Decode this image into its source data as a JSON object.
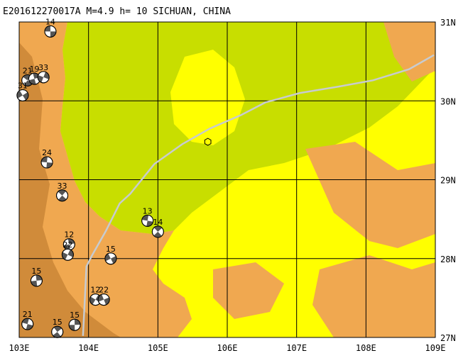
{
  "title": "E201612270017A  M=4.9  h= 10  SICHUAN, CHINA",
  "map": {
    "lon_range": [
      103,
      109
    ],
    "lat_range": [
      27,
      31
    ],
    "lon_ticks": [
      "103E",
      "104E",
      "105E",
      "106E",
      "107E",
      "108E",
      "109E"
    ],
    "lat_ticks": [
      "31N",
      "30N",
      "29N",
      "28N",
      "27N"
    ],
    "colors": {
      "lowland": "#c8de00",
      "plain": "#ffff00",
      "hill": "#f0a850",
      "mountain": "#d08b3a",
      "boundary": "#c7cbd0",
      "grid": "#000000"
    },
    "epicenter": {
      "lon": 105.72,
      "lat": 29.48,
      "marker": "hexagon-icon"
    },
    "events": [
      {
        "label": "14",
        "lon": 103.45,
        "lat": 30.88
      },
      {
        "label": "21",
        "lon": 103.12,
        "lat": 30.26
      },
      {
        "label": "19",
        "lon": 103.22,
        "lat": 30.28
      },
      {
        "label": "33",
        "lon": 103.35,
        "lat": 30.3
      },
      {
        "label": "31",
        "lon": 103.05,
        "lat": 30.07
      },
      {
        "label": "24",
        "lon": 103.4,
        "lat": 29.22
      },
      {
        "label": "33",
        "lon": 103.62,
        "lat": 28.8
      },
      {
        "label": "12",
        "lon": 103.72,
        "lat": 28.18
      },
      {
        "label": "22",
        "lon": 103.7,
        "lat": 28.05
      },
      {
        "label": "15",
        "lon": 104.32,
        "lat": 28.0
      },
      {
        "label": "13",
        "lon": 104.85,
        "lat": 28.48
      },
      {
        "label": "14",
        "lon": 105.0,
        "lat": 28.34
      },
      {
        "label": "15",
        "lon": 103.25,
        "lat": 27.72
      },
      {
        "label": "12",
        "lon": 104.1,
        "lat": 27.48
      },
      {
        "label": "22",
        "lon": 104.22,
        "lat": 27.48
      },
      {
        "label": "21",
        "lon": 103.12,
        "lat": 27.17
      },
      {
        "label": "15",
        "lon": 103.55,
        "lat": 27.07
      },
      {
        "label": "15",
        "lon": 103.8,
        "lat": 27.16
      }
    ],
    "boundary_line": [
      [
        103.92,
        27.02
      ],
      [
        103.97,
        27.9
      ],
      [
        104.05,
        28.04
      ],
      [
        104.25,
        28.35
      ],
      [
        104.45,
        28.7
      ],
      [
        104.6,
        28.82
      ],
      [
        104.95,
        29.2
      ],
      [
        105.35,
        29.45
      ],
      [
        105.75,
        29.65
      ],
      [
        106.2,
        29.82
      ],
      [
        106.55,
        29.98
      ],
      [
        107.05,
        30.1
      ],
      [
        107.6,
        30.18
      ],
      [
        108.1,
        30.26
      ],
      [
        108.62,
        30.4
      ],
      [
        108.98,
        30.58
      ]
    ]
  }
}
